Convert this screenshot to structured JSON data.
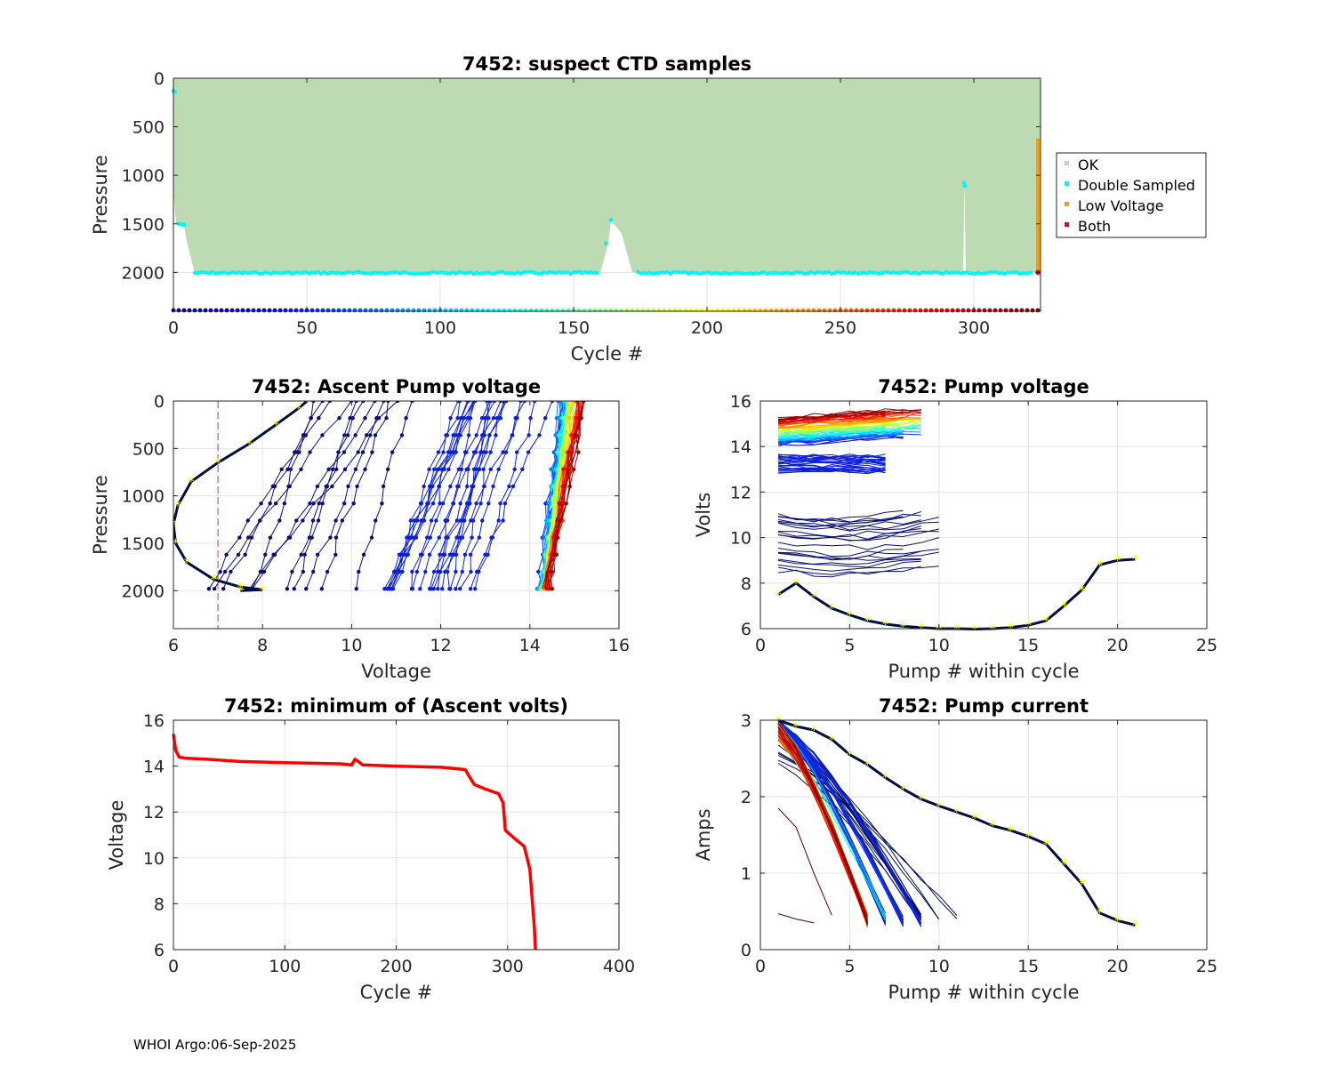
{
  "footer": "WHOI Argo:06-Sep-2025",
  "colors": {
    "ok": "#bcdbb2",
    "double": "#00f5f5",
    "lowvolt": "#ff9a00",
    "both": "#e8001c",
    "minvolt": "#ff0000",
    "refline": "#c0395f",
    "track": "#00103a",
    "marker": "#ffff00"
  },
  "chart_data": [
    {
      "id": "ctd",
      "type": "scatter",
      "title": "7452: suspect CTD samples",
      "xlabel": "Cycle #",
      "ylabel": "Pressure",
      "xlim": [
        0,
        325
      ],
      "ylim": [
        2400,
        0
      ],
      "xticks": [
        0,
        50,
        100,
        150,
        200,
        250,
        300
      ],
      "yticks": [
        0,
        500,
        1000,
        1500,
        2000
      ],
      "grid": true,
      "legend": {
        "placement": "outside-right",
        "entries": [
          "OK",
          "Double Sampled",
          "Low Voltage",
          "Both"
        ]
      },
      "profile_bottom": [
        [
          0,
          1150
        ],
        [
          1,
          1500
        ],
        [
          4,
          1520
        ],
        [
          5,
          1680
        ],
        [
          7,
          1900
        ],
        [
          8,
          2000
        ],
        [
          15,
          2005
        ],
        [
          160,
          2005
        ],
        [
          161,
          1900
        ],
        [
          163,
          1700
        ],
        [
          164,
          1470
        ],
        [
          166,
          1530
        ],
        [
          168,
          1600
        ],
        [
          170,
          1800
        ],
        [
          172,
          2000
        ],
        [
          296,
          2000
        ],
        [
          296.5,
          1080
        ],
        [
          297,
          2000
        ],
        [
          325,
          2000
        ]
      ],
      "double_sampled_depth": 2005,
      "low_voltage_segment": {
        "cycle": 324,
        "from": 620,
        "to": 2000
      },
      "both_point": {
        "cycle": 324,
        "pressure": 2000
      },
      "cycle_colorbar_depth": 2400
    },
    {
      "id": "asc",
      "type": "line",
      "title": "7452: Ascent Pump voltage",
      "xlabel": "Voltage",
      "ylabel": "Pressure",
      "xlim": [
        6,
        16
      ],
      "ylim": [
        2400,
        0
      ],
      "xticks": [
        6,
        8,
        10,
        12,
        14,
        16
      ],
      "yticks": [
        0,
        500,
        1000,
        1500,
        2000
      ],
      "grid": true,
      "reference_line_x": 7,
      "profile_count": 324,
      "last_profile": [
        [
          9,
          0
        ],
        [
          8.8,
          80
        ],
        [
          8.3,
          250
        ],
        [
          7.7,
          450
        ],
        [
          7.0,
          650
        ],
        [
          6.4,
          850
        ],
        [
          6.1,
          1100
        ],
        [
          6.0,
          1300
        ],
        [
          6.05,
          1500
        ],
        [
          6.3,
          1700
        ],
        [
          6.9,
          1880
        ],
        [
          7.5,
          1960
        ],
        [
          8.0,
          1990
        ],
        [
          7.5,
          2000
        ]
      ]
    },
    {
      "id": "pv",
      "type": "line",
      "title": "7452: Pump voltage",
      "xlabel": "Pump # within cycle",
      "ylabel": "Volts",
      "xlim": [
        0,
        25
      ],
      "ylim": [
        6,
        16
      ],
      "xticks": [
        0,
        5,
        10,
        15,
        20,
        25
      ],
      "yticks": [
        6,
        8,
        10,
        12,
        14,
        16
      ],
      "grid": true,
      "last_cycle": [
        [
          1,
          7.5
        ],
        [
          2,
          8.0
        ],
        [
          3,
          7.4
        ],
        [
          4,
          6.9
        ],
        [
          5,
          6.6
        ],
        [
          6,
          6.35
        ],
        [
          7,
          6.2
        ],
        [
          8,
          6.1
        ],
        [
          9,
          6.05
        ],
        [
          10,
          6.0
        ],
        [
          11,
          6.0
        ],
        [
          12,
          5.98
        ],
        [
          13,
          6.0
        ],
        [
          14,
          6.05
        ],
        [
          15,
          6.15
        ],
        [
          16,
          6.35
        ],
        [
          17,
          7.0
        ],
        [
          18,
          7.7
        ],
        [
          19,
          8.8
        ],
        [
          20,
          9.0
        ],
        [
          21,
          9.05
        ]
      ]
    },
    {
      "id": "minv",
      "type": "line",
      "title": "7452: minimum of (Ascent volts)",
      "xlabel": "Cycle #",
      "ylabel": "Voltage",
      "xlim": [
        0,
        400
      ],
      "ylim": [
        6,
        16
      ],
      "xticks": [
        0,
        100,
        200,
        300,
        400
      ],
      "yticks": [
        6,
        8,
        10,
        12,
        14,
        16
      ],
      "grid": true,
      "series": [
        {
          "name": "min ascent volts",
          "points": [
            [
              0,
              15.4
            ],
            [
              2,
              14.7
            ],
            [
              5,
              14.4
            ],
            [
              10,
              14.35
            ],
            [
              30,
              14.3
            ],
            [
              60,
              14.2
            ],
            [
              100,
              14.15
            ],
            [
              150,
              14.1
            ],
            [
              160,
              14.05
            ],
            [
              163,
              14.3
            ],
            [
              166,
              14.2
            ],
            [
              170,
              14.05
            ],
            [
              200,
              14.0
            ],
            [
              240,
              13.95
            ],
            [
              262,
              13.85
            ],
            [
              265,
              13.6
            ],
            [
              270,
              13.2
            ],
            [
              280,
              13.0
            ],
            [
              292,
              12.8
            ],
            [
              296,
              12.4
            ],
            [
              298,
              11.2
            ],
            [
              305,
              10.9
            ],
            [
              315,
              10.5
            ],
            [
              320,
              9.5
            ],
            [
              324,
              7.0
            ],
            [
              325,
              6.0
            ]
          ]
        }
      ]
    },
    {
      "id": "pc",
      "type": "line",
      "title": "7452: Pump current",
      "xlabel": "Pump # within cycle",
      "ylabel": "Amps",
      "xlim": [
        0,
        25
      ],
      "ylim": [
        0,
        3
      ],
      "xticks": [
        0,
        5,
        10,
        15,
        20,
        25
      ],
      "yticks": [
        0,
        1,
        2,
        3
      ],
      "grid": true,
      "last_cycle": [
        [
          1,
          3.0
        ],
        [
          2,
          2.92
        ],
        [
          3,
          2.87
        ],
        [
          4,
          2.75
        ],
        [
          5,
          2.55
        ],
        [
          6,
          2.42
        ],
        [
          7,
          2.25
        ],
        [
          8,
          2.1
        ],
        [
          9,
          1.97
        ],
        [
          10,
          1.88
        ],
        [
          11,
          1.8
        ],
        [
          12,
          1.72
        ],
        [
          13,
          1.62
        ],
        [
          14,
          1.56
        ],
        [
          15,
          1.48
        ],
        [
          16,
          1.38
        ],
        [
          17,
          1.12
        ],
        [
          18,
          0.86
        ],
        [
          19,
          0.48
        ],
        [
          20,
          0.38
        ],
        [
          21,
          0.32
        ]
      ]
    }
  ]
}
